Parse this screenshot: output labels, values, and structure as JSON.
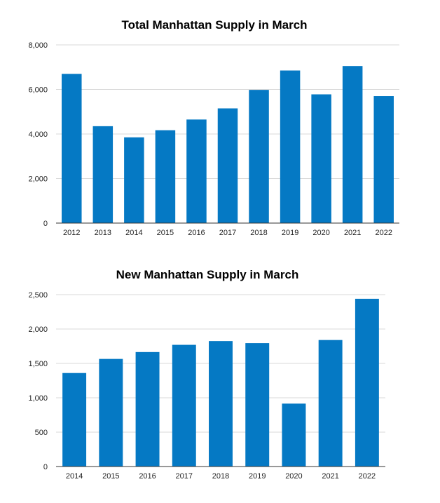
{
  "chart_data": [
    {
      "type": "bar",
      "title": "Total Manhattan Supply in March",
      "xlabel": "",
      "ylabel": "",
      "categories": [
        "2012",
        "2013",
        "2014",
        "2015",
        "2016",
        "2017",
        "2018",
        "2019",
        "2020",
        "2021",
        "2022"
      ],
      "values": [
        6700,
        4350,
        3850,
        4170,
        4650,
        5150,
        5980,
        6850,
        5780,
        7050,
        5700
      ],
      "ylim": [
        0,
        8000
      ],
      "yticks": [
        0,
        2000,
        4000,
        6000,
        8000
      ],
      "ytick_labels": [
        "0",
        "2,000",
        "4,000",
        "6,000",
        "8,000"
      ],
      "grid": true,
      "bar_color": "#0579c4"
    },
    {
      "type": "bar",
      "title": "New Manhattan Supply in March",
      "xlabel": "",
      "ylabel": "",
      "categories": [
        "2014",
        "2015",
        "2016",
        "2017",
        "2018",
        "2019",
        "2020",
        "2021",
        "2022"
      ],
      "values": [
        1360,
        1565,
        1665,
        1770,
        1825,
        1795,
        915,
        1840,
        2440
      ],
      "ylim": [
        0,
        2500
      ],
      "yticks": [
        0,
        500,
        1000,
        1500,
        2000,
        2500
      ],
      "ytick_labels": [
        "0",
        "500",
        "1,000",
        "1,500",
        "2,000",
        "2,500"
      ],
      "grid": true,
      "bar_color": "#0579c4"
    }
  ]
}
